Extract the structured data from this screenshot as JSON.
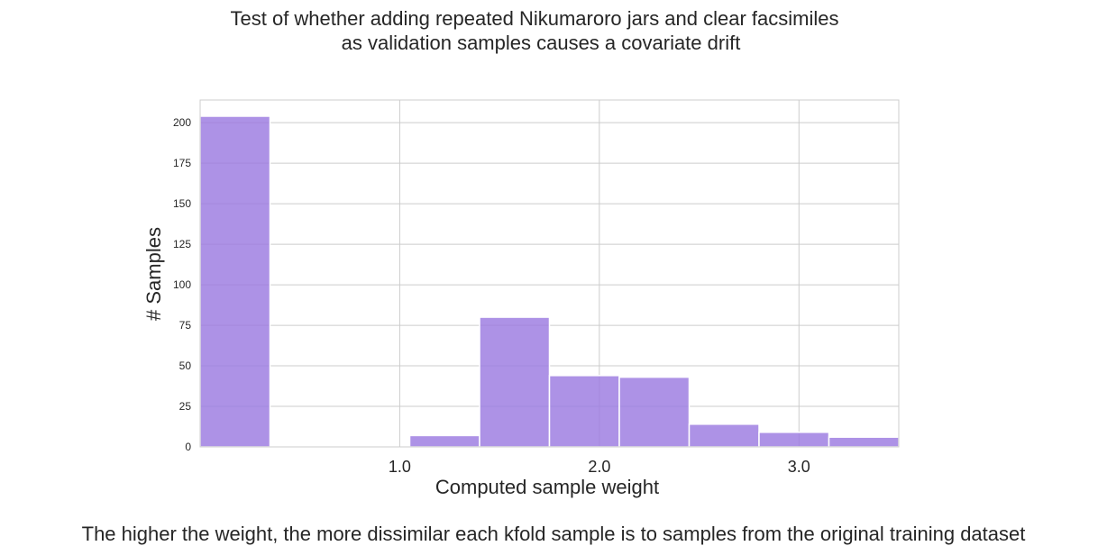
{
  "chart_data": {
    "type": "bar",
    "title": [
      "Test of whether adding repeated Nikumaroro jars and clear facsimiles",
      "as validation samples causes a covariate drift"
    ],
    "xlabel": "Computed sample weight",
    "ylabel": "# Samples",
    "caption": "The higher the weight, the more dissimilar each kfold sample is to samples from the original training dataset",
    "xlim": [
      0.0,
      3.5
    ],
    "ylim": [
      0,
      214
    ],
    "bins": [
      {
        "x0": 0.0,
        "x1": 0.35,
        "count": 204
      },
      {
        "x0": 0.35,
        "x1": 0.7,
        "count": 0
      },
      {
        "x0": 1.05,
        "x1": 1.4,
        "count": 7
      },
      {
        "x0": 1.4,
        "x1": 1.75,
        "count": 80
      },
      {
        "x0": 1.75,
        "x1": 2.1,
        "count": 44
      },
      {
        "x0": 2.1,
        "x1": 2.45,
        "count": 43
      },
      {
        "x0": 2.45,
        "x1": 2.8,
        "count": 14
      },
      {
        "x0": 2.8,
        "x1": 3.15,
        "count": 9
      },
      {
        "x0": 3.15,
        "x1": 3.5,
        "count": 6
      }
    ],
    "yticks": [
      0,
      25,
      50,
      75,
      100,
      125,
      150,
      175,
      200
    ],
    "xticks": [
      1.0,
      2.0,
      3.0
    ],
    "xtick_labels": [
      "1.0",
      "2.0",
      "3.0"
    ],
    "grid": true,
    "colors": {
      "bar": "#9b7ae0",
      "bar_edge": "#ffffff",
      "grid": "#cccccc",
      "frame": "#cccccc"
    }
  }
}
